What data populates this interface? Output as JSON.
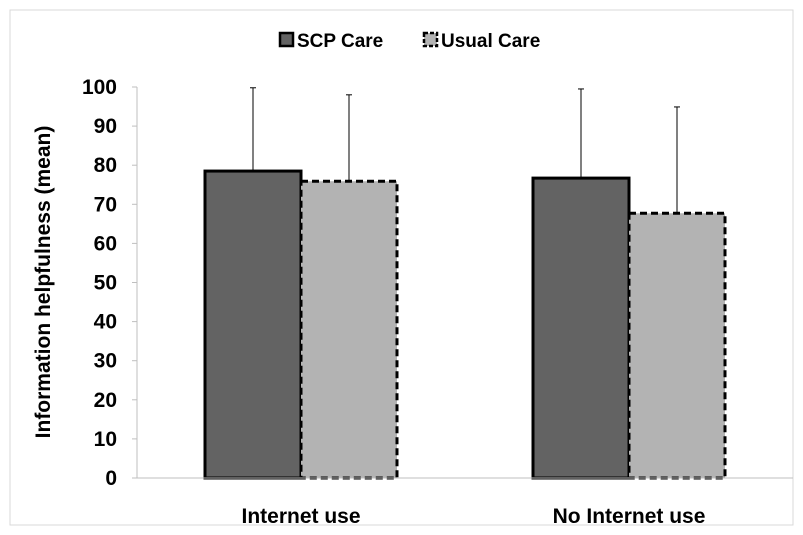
{
  "chart_data": {
    "type": "bar",
    "title": "",
    "xlabel": "",
    "ylabel": "Information helpfulness (mean)",
    "ylim": [
      0,
      100
    ],
    "yticks": [
      0,
      10,
      20,
      30,
      40,
      50,
      60,
      70,
      80,
      90,
      100
    ],
    "categories": [
      "Internet use",
      "No Internet use"
    ],
    "legend_position": "top-center",
    "grid": false,
    "error_bars": "upper standard deviation",
    "series": [
      {
        "name": "SCP Care",
        "values": [
          78.5,
          76.7
        ],
        "error_upper": [
          21.3,
          22.8
        ],
        "color": "#636363",
        "border": "solid"
      },
      {
        "name": "Usual Care",
        "values": [
          75.9,
          67.7
        ],
        "error_upper": [
          22.1,
          27.2
        ],
        "color": "#b3b3b3",
        "border": "dashed"
      }
    ]
  }
}
